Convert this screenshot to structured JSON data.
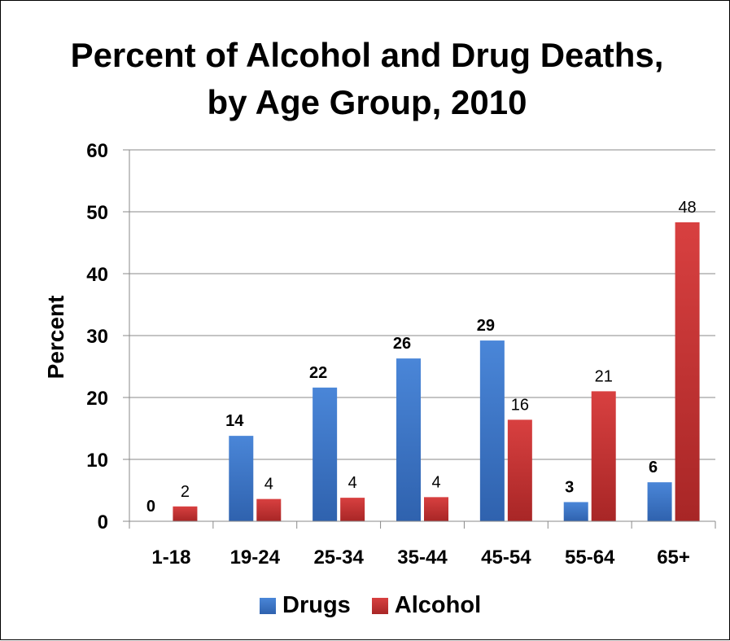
{
  "chart_data": {
    "type": "bar",
    "title": "Percent of Alcohol and Drug Deaths, by Age Group, 2010",
    "xlabel": "",
    "ylabel": "Percent",
    "ylim": [
      0,
      60
    ],
    "yticks": [
      0,
      10,
      20,
      30,
      40,
      50,
      60
    ],
    "grid": true,
    "legend_position": "bottom",
    "categories": [
      "1-18",
      "19-24",
      "25-34",
      "35-44",
      "45-54",
      "55-64",
      "65+"
    ],
    "series": [
      {
        "name": "Drugs",
        "color": "#3a73c4",
        "values": [
          0,
          13.8,
          21.6,
          26.3,
          29.2,
          3.1,
          6.3
        ],
        "labels": [
          "0",
          "14",
          "22",
          "26",
          "29",
          "3",
          "6"
        ],
        "label_style": "bold"
      },
      {
        "name": "Alcohol",
        "color": "#c83232",
        "values": [
          2.4,
          3.6,
          3.8,
          3.9,
          16.4,
          21.0,
          48.3
        ],
        "labels": [
          "2",
          "4",
          "4",
          "4",
          "16",
          "21",
          "48"
        ],
        "label_style": "normal"
      }
    ]
  }
}
